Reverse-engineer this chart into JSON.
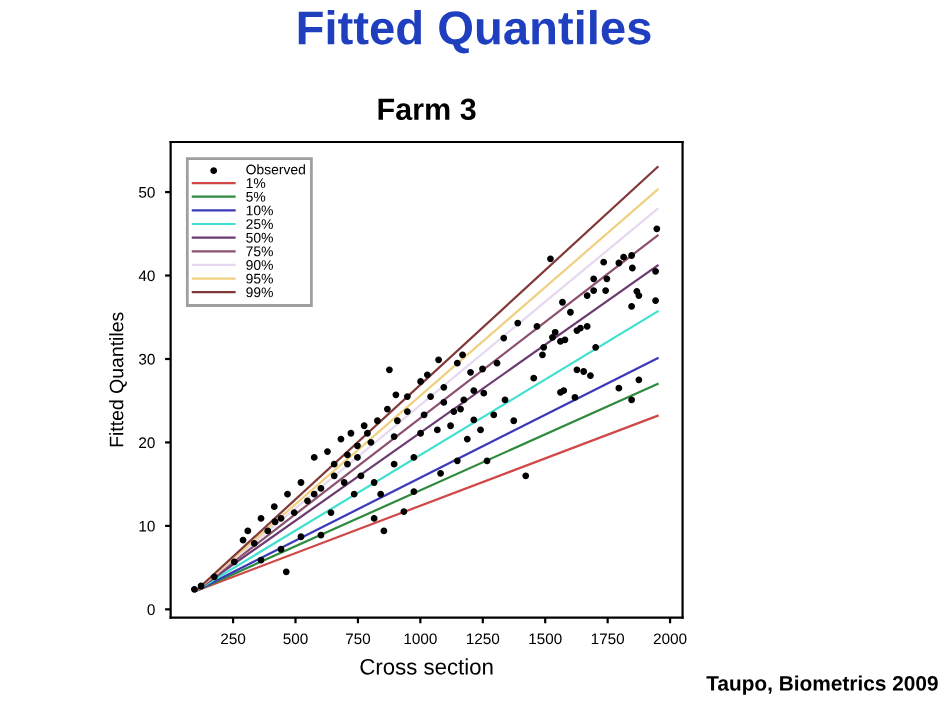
{
  "chart_data": {
    "type": "scatter",
    "title": "Fitted Quantiles",
    "subtitle": "Farm 3",
    "xlabel": "Cross section",
    "ylabel": "Fitted Quantiles",
    "annotations": [
      "Taupo, Biometrics 2009"
    ],
    "xlim": [
      0,
      2050
    ],
    "ylim": [
      -1,
      56
    ],
    "xticks": [
      250,
      500,
      750,
      1000,
      1250,
      1500,
      1750,
      2000
    ],
    "yticks": [
      0,
      10,
      20,
      30,
      40,
      50
    ],
    "grid": false,
    "legend": "top left",
    "series": [
      {
        "name": "Observed",
        "marker": "circle",
        "color": "#000000",
        "x": [
          1947,
          1942,
          1942,
          1846,
          1849,
          1867,
          1875,
          1846,
          1875,
          1846,
          1795,
          1814,
          1795,
          1734,
          1747,
          1742,
          1694,
          1694,
          1702,
          1654,
          1627,
          1681,
          1521,
          1569,
          1601,
          1668,
          1668,
          1641,
          1627,
          1579,
          1561,
          1540,
          1529,
          1494,
          1489,
          1574,
          1561,
          1619,
          1467,
          1454,
          1390,
          1334,
          1422,
          1374,
          1339,
          1169,
          1148,
          1073,
          1028,
          1001,
          876,
          902,
          1094,
          1134,
          1161,
          1214,
          1254,
          1249,
          1307,
          1267,
          1148,
          1081,
          974,
          934,
          841,
          854,
          735,
          815,
          642,
          602,
          463,
          522,
          442,
          362,
          290,
          418,
          575,
          655,
          708,
          748,
          788,
          908,
          948,
          1015,
          1068,
          1188,
          1241,
          1294,
          974,
          895,
          815,
          762,
          695,
          602,
          548,
          495,
          442,
          389,
          335,
          255,
          175,
          122,
          95,
          575,
          628,
          682,
          722,
          775,
          828,
          868,
          655,
          522,
          468,
          415,
          362,
          309,
          708,
          748,
          802,
          895,
          1001,
          1121,
          1174,
          1201,
          1214,
          1094,
          1041,
          948
        ],
        "values": [
          45.6,
          40.5,
          37.0,
          42.4,
          40.9,
          38.1,
          37.6,
          36.3,
          27.5,
          25.1,
          26.5,
          42.2,
          41.5,
          41.6,
          39.6,
          38.2,
          38.2,
          39.6,
          31.4,
          28.5,
          28.7,
          28.0,
          42.0,
          36.8,
          35.6,
          37.6,
          33.9,
          33.7,
          33.4,
          32.3,
          32.1,
          33.2,
          32.6,
          31.4,
          30.5,
          26.2,
          26.0,
          25.4,
          33.9,
          27.7,
          34.3,
          32.5,
          16.0,
          22.6,
          25.1,
          30.5,
          29.5,
          29.9,
          28.1,
          27.3,
          28.7,
          25.7,
          26.6,
          23.7,
          24.0,
          22.7,
          25.9,
          28.8,
          29.5,
          17.8,
          17.8,
          16.3,
          14.1,
          11.7,
          13.8,
          9.4,
          13.8,
          10.9,
          11.6,
          8.9,
          4.5,
          8.7,
          7.2,
          5.9,
          8.3,
          10.5,
          13.8,
          16.0,
          17.4,
          19.6,
          21.1,
          22.6,
          23.7,
          23.3,
          21.5,
          20.4,
          21.5,
          23.3,
          18.2,
          17.4,
          15.2,
          16.0,
          15.2,
          14.5,
          13.0,
          11.6,
          10.9,
          9.4,
          7.9,
          5.7,
          3.9,
          2.8,
          2.4,
          18.2,
          18.9,
          20.4,
          21.1,
          22.0,
          22.6,
          24.0,
          17.4,
          15.2,
          13.8,
          12.3,
          10.9,
          9.4,
          18.5,
          18.2,
          20.0,
          20.7,
          21.1,
          22.0,
          25.1,
          28.4,
          26.2,
          24.8,
          25.5,
          25.5
        ]
      },
      {
        "name": "1%",
        "type": "line",
        "color": "#d04848",
        "x": [
          100,
          1950
        ],
        "values": [
          2.2,
          23.2
        ]
      },
      {
        "name": "5%",
        "type": "line",
        "color": "#2e8b3e",
        "x": [
          100,
          1950
        ],
        "values": [
          2.2,
          27.0
        ]
      },
      {
        "name": "10%",
        "type": "line",
        "color": "#3a3ab8",
        "x": [
          100,
          1950
        ],
        "values": [
          2.2,
          30.1
        ]
      },
      {
        "name": "25%",
        "type": "line",
        "color": "#40e0d0",
        "x": [
          100,
          1950
        ],
        "values": [
          2.2,
          35.7
        ]
      },
      {
        "name": "50%",
        "type": "line",
        "color": "#6a3a70",
        "x": [
          100,
          1950
        ],
        "values": [
          2.2,
          41.2
        ]
      },
      {
        "name": "75%",
        "type": "line",
        "color": "#8b5070",
        "x": [
          100,
          1950
        ],
        "values": [
          2.2,
          44.8
        ]
      },
      {
        "name": "90%",
        "type": "line",
        "color": "#e6d8f0",
        "x": [
          100,
          1950
        ],
        "values": [
          2.2,
          48.0
        ]
      },
      {
        "name": "95%",
        "type": "line",
        "color": "#f0d080",
        "x": [
          100,
          1950
        ],
        "values": [
          2.2,
          50.3
        ]
      },
      {
        "name": "99%",
        "type": "line",
        "color": "#803838",
        "x": [
          100,
          1950
        ],
        "values": [
          2.2,
          53.0
        ]
      }
    ]
  }
}
